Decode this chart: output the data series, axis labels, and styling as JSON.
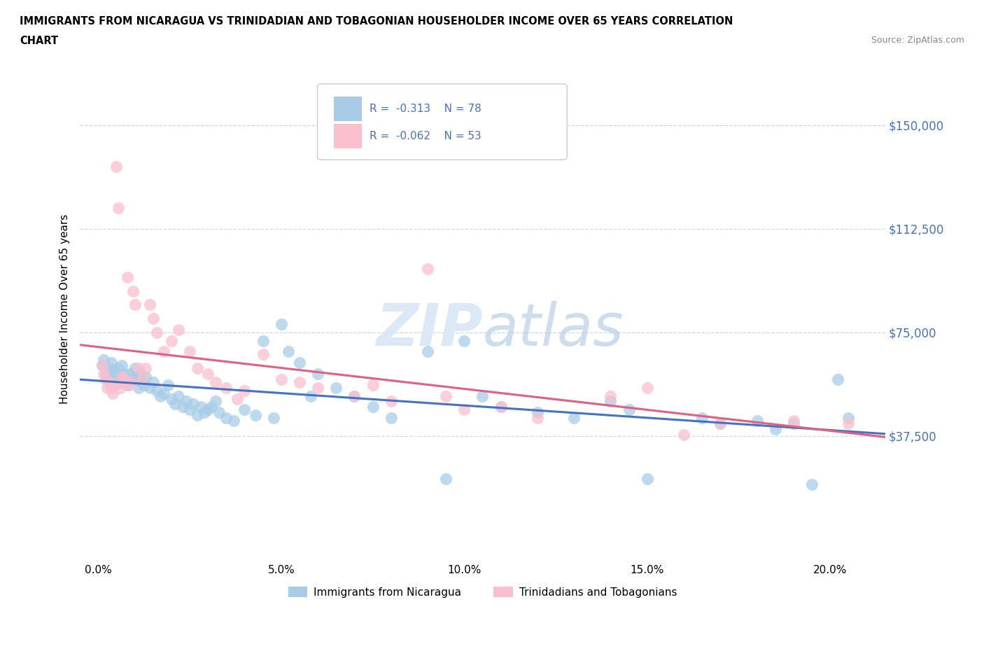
{
  "title_line1": "IMMIGRANTS FROM NICARAGUA VS TRINIDADIAN AND TOBAGONIAN HOUSEHOLDER INCOME OVER 65 YEARS CORRELATION",
  "title_line2": "CHART",
  "source_text": "Source: ZipAtlas.com",
  "ylabel": "Householder Income Over 65 years",
  "xlabel_ticks": [
    "0.0%",
    "5.0%",
    "10.0%",
    "15.0%",
    "20.0%"
  ],
  "xlabel_vals": [
    0.0,
    5.0,
    10.0,
    15.0,
    20.0
  ],
  "yticks": [
    0,
    37500,
    75000,
    112500,
    150000
  ],
  "ytick_labels": [
    "",
    "$37,500",
    "$75,000",
    "$112,500",
    "$150,000"
  ],
  "xlim": [
    -0.5,
    21.5
  ],
  "ylim": [
    -8000,
    175000
  ],
  "legend_r1": "R =  -0.313",
  "legend_n1": "N = 78",
  "legend_r2": "R =  -0.062",
  "legend_n2": "N = 53",
  "legend_label1": "Immigrants from Nicaragua",
  "legend_label2": "Trinidadians and Tobagonians",
  "color_blue": "#a8cce8",
  "color_pink": "#f9bfce",
  "color_blue_line": "#4472c4",
  "color_pink_line": "#e06080",
  "color_text_blue": "#4472c4",
  "color_grid": "#c8d8e8",
  "watermark_color": "#dce8f5",
  "blue_scatter_x": [
    0.1,
    0.15,
    0.2,
    0.25,
    0.3,
    0.35,
    0.4,
    0.45,
    0.5,
    0.55,
    0.6,
    0.65,
    0.7,
    0.75,
    0.8,
    0.85,
    0.9,
    0.95,
    1.0,
    1.05,
    1.1,
    1.15,
    1.2,
    1.25,
    1.3,
    1.4,
    1.5,
    1.6,
    1.7,
    1.8,
    1.9,
    2.0,
    2.1,
    2.2,
    2.3,
    2.4,
    2.5,
    2.6,
    2.7,
    2.8,
    2.9,
    3.0,
    3.1,
    3.2,
    3.3,
    3.5,
    3.7,
    4.0,
    4.3,
    4.5,
    4.8,
    5.0,
    5.2,
    5.5,
    5.8,
    6.0,
    6.5,
    7.0,
    7.5,
    8.0,
    9.0,
    9.5,
    10.0,
    10.5,
    11.0,
    12.0,
    13.0,
    14.0,
    14.5,
    15.0,
    16.5,
    17.0,
    18.0,
    18.5,
    19.0,
    19.5,
    20.2,
    20.5
  ],
  "blue_scatter_y": [
    63000,
    65000,
    60000,
    58000,
    62000,
    64000,
    61000,
    59000,
    60000,
    62000,
    57000,
    63000,
    60000,
    58000,
    56000,
    60000,
    57000,
    59000,
    62000,
    58000,
    55000,
    60000,
    57000,
    56000,
    59000,
    55000,
    57000,
    54000,
    52000,
    53000,
    56000,
    51000,
    49000,
    52000,
    48000,
    50000,
    47000,
    49000,
    45000,
    48000,
    46000,
    47000,
    48000,
    50000,
    46000,
    44000,
    43000,
    47000,
    45000,
    72000,
    44000,
    78000,
    68000,
    64000,
    52000,
    60000,
    55000,
    52000,
    48000,
    44000,
    68000,
    22000,
    72000,
    52000,
    48000,
    46000,
    44000,
    50000,
    47000,
    22000,
    44000,
    42000,
    43000,
    40000,
    42000,
    20000,
    58000,
    44000
  ],
  "pink_scatter_x": [
    0.1,
    0.15,
    0.2,
    0.25,
    0.3,
    0.35,
    0.4,
    0.45,
    0.5,
    0.55,
    0.6,
    0.65,
    0.7,
    0.75,
    0.8,
    0.85,
    0.9,
    0.95,
    1.0,
    1.1,
    1.2,
    1.3,
    1.4,
    1.5,
    1.6,
    1.8,
    2.0,
    2.2,
    2.5,
    2.7,
    3.0,
    3.2,
    3.5,
    3.8,
    4.0,
    4.5,
    5.0,
    5.5,
    6.0,
    7.0,
    7.5,
    8.0,
    9.0,
    9.5,
    10.0,
    11.0,
    12.0,
    14.0,
    15.0,
    16.0,
    17.0,
    19.0,
    20.5
  ],
  "pink_scatter_y": [
    63000,
    60000,
    58000,
    55000,
    57000,
    55000,
    53000,
    56000,
    135000,
    120000,
    55000,
    59000,
    58000,
    57000,
    95000,
    56000,
    57000,
    90000,
    85000,
    62000,
    58000,
    62000,
    85000,
    80000,
    75000,
    68000,
    72000,
    76000,
    68000,
    62000,
    60000,
    57000,
    55000,
    51000,
    54000,
    67000,
    58000,
    57000,
    55000,
    52000,
    56000,
    50000,
    98000,
    52000,
    47000,
    48000,
    44000,
    52000,
    55000,
    38000,
    42000,
    43000,
    42000
  ]
}
